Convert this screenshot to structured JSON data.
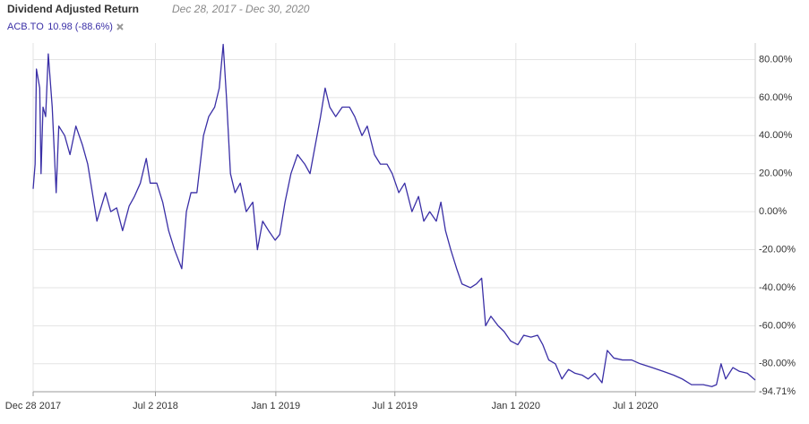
{
  "chart_data": {
    "type": "line",
    "title": "Dividend Adjusted Return",
    "subtitle": "Dec 28, 2017 - Dec 30, 2020",
    "xlim": [
      "2017-12-28",
      "2020-12-30"
    ],
    "xticks": [
      {
        "value": "2017-12-28",
        "label": "Dec 28 2017"
      },
      {
        "value": "2018-07-02",
        "label": "Jul 2 2018"
      },
      {
        "value": "2019-01-01",
        "label": "Jan 1 2019"
      },
      {
        "value": "2019-07-01",
        "label": "Jul 1 2019"
      },
      {
        "value": "2020-01-01",
        "label": "Jan 1 2020"
      },
      {
        "value": "2020-07-01",
        "label": "Jul 1 2020"
      }
    ],
    "ylim": [
      -94.71,
      88.7
    ],
    "yticks": [
      {
        "value": 80,
        "label": "80.00%"
      },
      {
        "value": 60,
        "label": "60.00%"
      },
      {
        "value": 40,
        "label": "40.00%"
      },
      {
        "value": 20,
        "label": "20.00%"
      },
      {
        "value": 0,
        "label": "0.00%"
      },
      {
        "value": -20,
        "label": "-20.00%"
      },
      {
        "value": -40,
        "label": "-40.00%"
      },
      {
        "value": -60,
        "label": "-60.00%"
      },
      {
        "value": -80,
        "label": "-80.00%"
      },
      {
        "value": -94.71,
        "label": "-94.71%"
      }
    ],
    "grid": true,
    "x": [
      "2017-12-28",
      "2017-12-31",
      "2018-01-02",
      "2018-01-07",
      "2018-01-09",
      "2018-01-12",
      "2018-01-16",
      "2018-01-20",
      "2018-01-26",
      "2018-02-01",
      "2018-02-05",
      "2018-02-14",
      "2018-02-22",
      "2018-03-03",
      "2018-03-13",
      "2018-03-21",
      "2018-03-28",
      "2018-04-04",
      "2018-04-10",
      "2018-04-17",
      "2018-04-25",
      "2018-05-04",
      "2018-05-13",
      "2018-05-23",
      "2018-05-31",
      "2018-06-09",
      "2018-06-18",
      "2018-06-24",
      "2018-07-04",
      "2018-07-13",
      "2018-07-22",
      "2018-07-31",
      "2018-08-11",
      "2018-08-18",
      "2018-08-25",
      "2018-09-03",
      "2018-09-13",
      "2018-09-21",
      "2018-09-30",
      "2018-10-07",
      "2018-10-13",
      "2018-10-18",
      "2018-10-24",
      "2018-10-31",
      "2018-11-08",
      "2018-11-17",
      "2018-11-27",
      "2018-12-04",
      "2018-12-12",
      "2018-12-21",
      "2018-12-31",
      "2019-01-07",
      "2019-01-15",
      "2019-01-24",
      "2019-02-03",
      "2019-02-14",
      "2019-02-22",
      "2019-03-02",
      "2019-03-10",
      "2019-03-17",
      "2019-03-24",
      "2019-04-02",
      "2019-04-12",
      "2019-04-23",
      "2019-05-01",
      "2019-05-12",
      "2019-05-20",
      "2019-05-31",
      "2019-06-09",
      "2019-06-19",
      "2019-06-27",
      "2019-07-07",
      "2019-07-16",
      "2019-07-27",
      "2019-08-06",
      "2019-08-14",
      "2019-08-23",
      "2019-09-02",
      "2019-09-09",
      "2019-09-16",
      "2019-09-24",
      "2019-10-03",
      "2019-10-11",
      "2019-10-24",
      "2019-11-02",
      "2019-11-10",
      "2019-11-16",
      "2019-11-24",
      "2019-12-05",
      "2019-12-14",
      "2019-12-24",
      "2020-01-04",
      "2020-01-13",
      "2020-01-24",
      "2020-02-03",
      "2020-02-11",
      "2020-02-20",
      "2020-03-01",
      "2020-03-11",
      "2020-03-21",
      "2020-03-31",
      "2020-04-11",
      "2020-04-20",
      "2020-04-30",
      "2020-05-11",
      "2020-05-19",
      "2020-05-29",
      "2020-06-11",
      "2020-06-25",
      "2020-07-08",
      "2020-07-26",
      "2020-08-12",
      "2020-08-28",
      "2020-09-10",
      "2020-09-24",
      "2020-10-12",
      "2020-10-25",
      "2020-11-01",
      "2020-11-08",
      "2020-11-15",
      "2020-11-26",
      "2020-12-06",
      "2020-12-18",
      "2020-12-30"
    ],
    "series": [
      {
        "name": "ACB.TO",
        "last_value_label": "10.98 (-88.6%)",
        "color": "#3a2fa6",
        "values": [
          12,
          25,
          75,
          65,
          20,
          55,
          50,
          83,
          55,
          10,
          45,
          40,
          30,
          45,
          35,
          25,
          10,
          -5,
          2,
          10,
          0,
          2,
          -10,
          3,
          8,
          15,
          28,
          15,
          15,
          5,
          -10,
          -20,
          -30,
          0,
          10,
          10,
          40,
          50,
          55,
          65,
          88,
          60,
          20,
          10,
          15,
          0,
          5,
          -20,
          -5,
          -10,
          -15,
          -12,
          5,
          20,
          30,
          25,
          20,
          35,
          50,
          65,
          55,
          50,
          55,
          55,
          50,
          40,
          45,
          30,
          25,
          25,
          20,
          10,
          15,
          0,
          8,
          -5,
          0,
          -5,
          5,
          -10,
          -20,
          -30,
          -38,
          -40,
          -38,
          -35,
          -60,
          -55,
          -60,
          -63,
          -68,
          -70,
          -65,
          -66,
          -65,
          -70,
          -78,
          -80,
          -88,
          -83,
          -85,
          -86,
          -88,
          -85,
          -90,
          -73,
          -77,
          -78,
          -78,
          -80,
          -82,
          -84,
          -86,
          -88,
          -91,
          -91,
          -92,
          -91,
          -80,
          -88,
          -82,
          -84,
          -85,
          -88.6
        ]
      }
    ]
  }
}
